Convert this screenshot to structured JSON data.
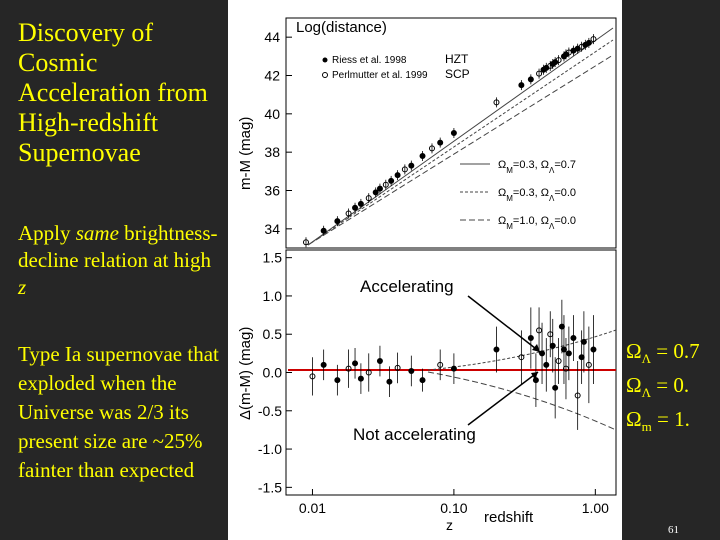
{
  "slide": {
    "title": "Discovery of Cosmic Acceleration from High-redshift Supernovae",
    "apply_prefix": "Apply ",
    "apply_em": "same",
    "apply_mid": " brightness-decline relation at high ",
    "apply_z": "z",
    "typeia": "Type Ia supernovae that exploded when the Universe was 2/3 its present size are ~25% fainter than expected",
    "page_number": "61"
  },
  "legend_right": [
    {
      "sym": "Ω",
      "sub": "Λ",
      "text": " = 0.7"
    },
    {
      "sym": "Ω",
      "sub": "Λ",
      "text": " = 0."
    },
    {
      "sym": "Ω",
      "sub": "m",
      "text": " = 1."
    }
  ],
  "chart_data": [
    {
      "type": "scatter",
      "title": "",
      "ylabel": "m-M (mag)",
      "ylim": [
        33,
        45
      ],
      "yticks": [
        "34",
        "36",
        "38",
        "40",
        "42",
        "44"
      ],
      "annotation": "Log(distance)",
      "legend": [
        "Riess et al. 1998",
        "Perlmutter et al. 1999"
      ],
      "legend_tags": [
        "HZT",
        "SCP"
      ],
      "model_labels": [
        {
          "om": "M",
          "ol": "Λ",
          "vm": "=0.3,",
          "vl": "=0.7"
        },
        {
          "om": "M",
          "ol": "Λ",
          "vm": "=0.3,",
          "vl": "=0.0"
        },
        {
          "om": "M",
          "ol": "Λ",
          "vm": "=1.0,",
          "vl": "=0.0"
        }
      ],
      "x": [
        0.009,
        0.012,
        0.015,
        0.018,
        0.02,
        0.022,
        0.025,
        0.028,
        0.03,
        0.033,
        0.036,
        0.04,
        0.045,
        0.05,
        0.06,
        0.07,
        0.08,
        0.1,
        0.2,
        0.3,
        0.35,
        0.4,
        0.43,
        0.45,
        0.48,
        0.5,
        0.52,
        0.55,
        0.6,
        0.62,
        0.65,
        0.7,
        0.75,
        0.8,
        0.85,
        0.9,
        0.97
      ],
      "y": [
        33.3,
        33.9,
        34.4,
        34.8,
        35.1,
        35.3,
        35.6,
        35.9,
        36.1,
        36.3,
        36.5,
        36.8,
        37.1,
        37.3,
        37.8,
        38.2,
        38.5,
        39.0,
        40.6,
        41.5,
        41.8,
        42.1,
        42.3,
        42.4,
        42.5,
        42.6,
        42.7,
        42.8,
        43.0,
        43.1,
        43.2,
        43.3,
        43.4,
        43.5,
        43.6,
        43.7,
        43.9
      ]
    },
    {
      "type": "scatter",
      "xlabel": "z",
      "ylabel": "Δ(m-M) (mag)",
      "xscale": "log",
      "xlim": [
        0.0065,
        1.4
      ],
      "ylim": [
        -1.6,
        1.6
      ],
      "xticks": [
        "0.01",
        "0.10",
        "1.00"
      ],
      "yticks": [
        "1.5",
        "1.0",
        "0.5",
        "0.0",
        "-0.5",
        "-1.0",
        "-1.5"
      ],
      "annotations": [
        "Accelerating",
        "Not accelerating",
        "redshift"
      ],
      "x": [
        0.01,
        0.012,
        0.015,
        0.018,
        0.02,
        0.022,
        0.025,
        0.03,
        0.035,
        0.04,
        0.05,
        0.06,
        0.08,
        0.1,
        0.2,
        0.3,
        0.35,
        0.38,
        0.4,
        0.42,
        0.45,
        0.48,
        0.5,
        0.52,
        0.55,
        0.58,
        0.6,
        0.62,
        0.65,
        0.7,
        0.75,
        0.8,
        0.83,
        0.9,
        0.97
      ],
      "y": [
        -0.05,
        0.1,
        -0.1,
        0.05,
        0.12,
        -0.08,
        0.0,
        0.15,
        -0.12,
        0.06,
        0.02,
        -0.1,
        0.1,
        0.05,
        0.3,
        0.2,
        0.45,
        -0.1,
        0.55,
        0.25,
        0.1,
        0.5,
        0.35,
        -0.2,
        0.15,
        0.6,
        0.3,
        0.05,
        0.25,
        0.45,
        -0.3,
        0.2,
        0.4,
        0.1,
        0.3
      ],
      "error": [
        0.25,
        0.2,
        0.2,
        0.25,
        0.2,
        0.2,
        0.25,
        0.2,
        0.2,
        0.2,
        0.2,
        0.15,
        0.2,
        0.2,
        0.3,
        0.35,
        0.4,
        0.35,
        0.3,
        0.4,
        0.35,
        0.3,
        0.35,
        0.4,
        0.3,
        0.35,
        0.45,
        0.4,
        0.35,
        0.3,
        0.45,
        0.35,
        0.4,
        0.5,
        0.45
      ]
    }
  ]
}
